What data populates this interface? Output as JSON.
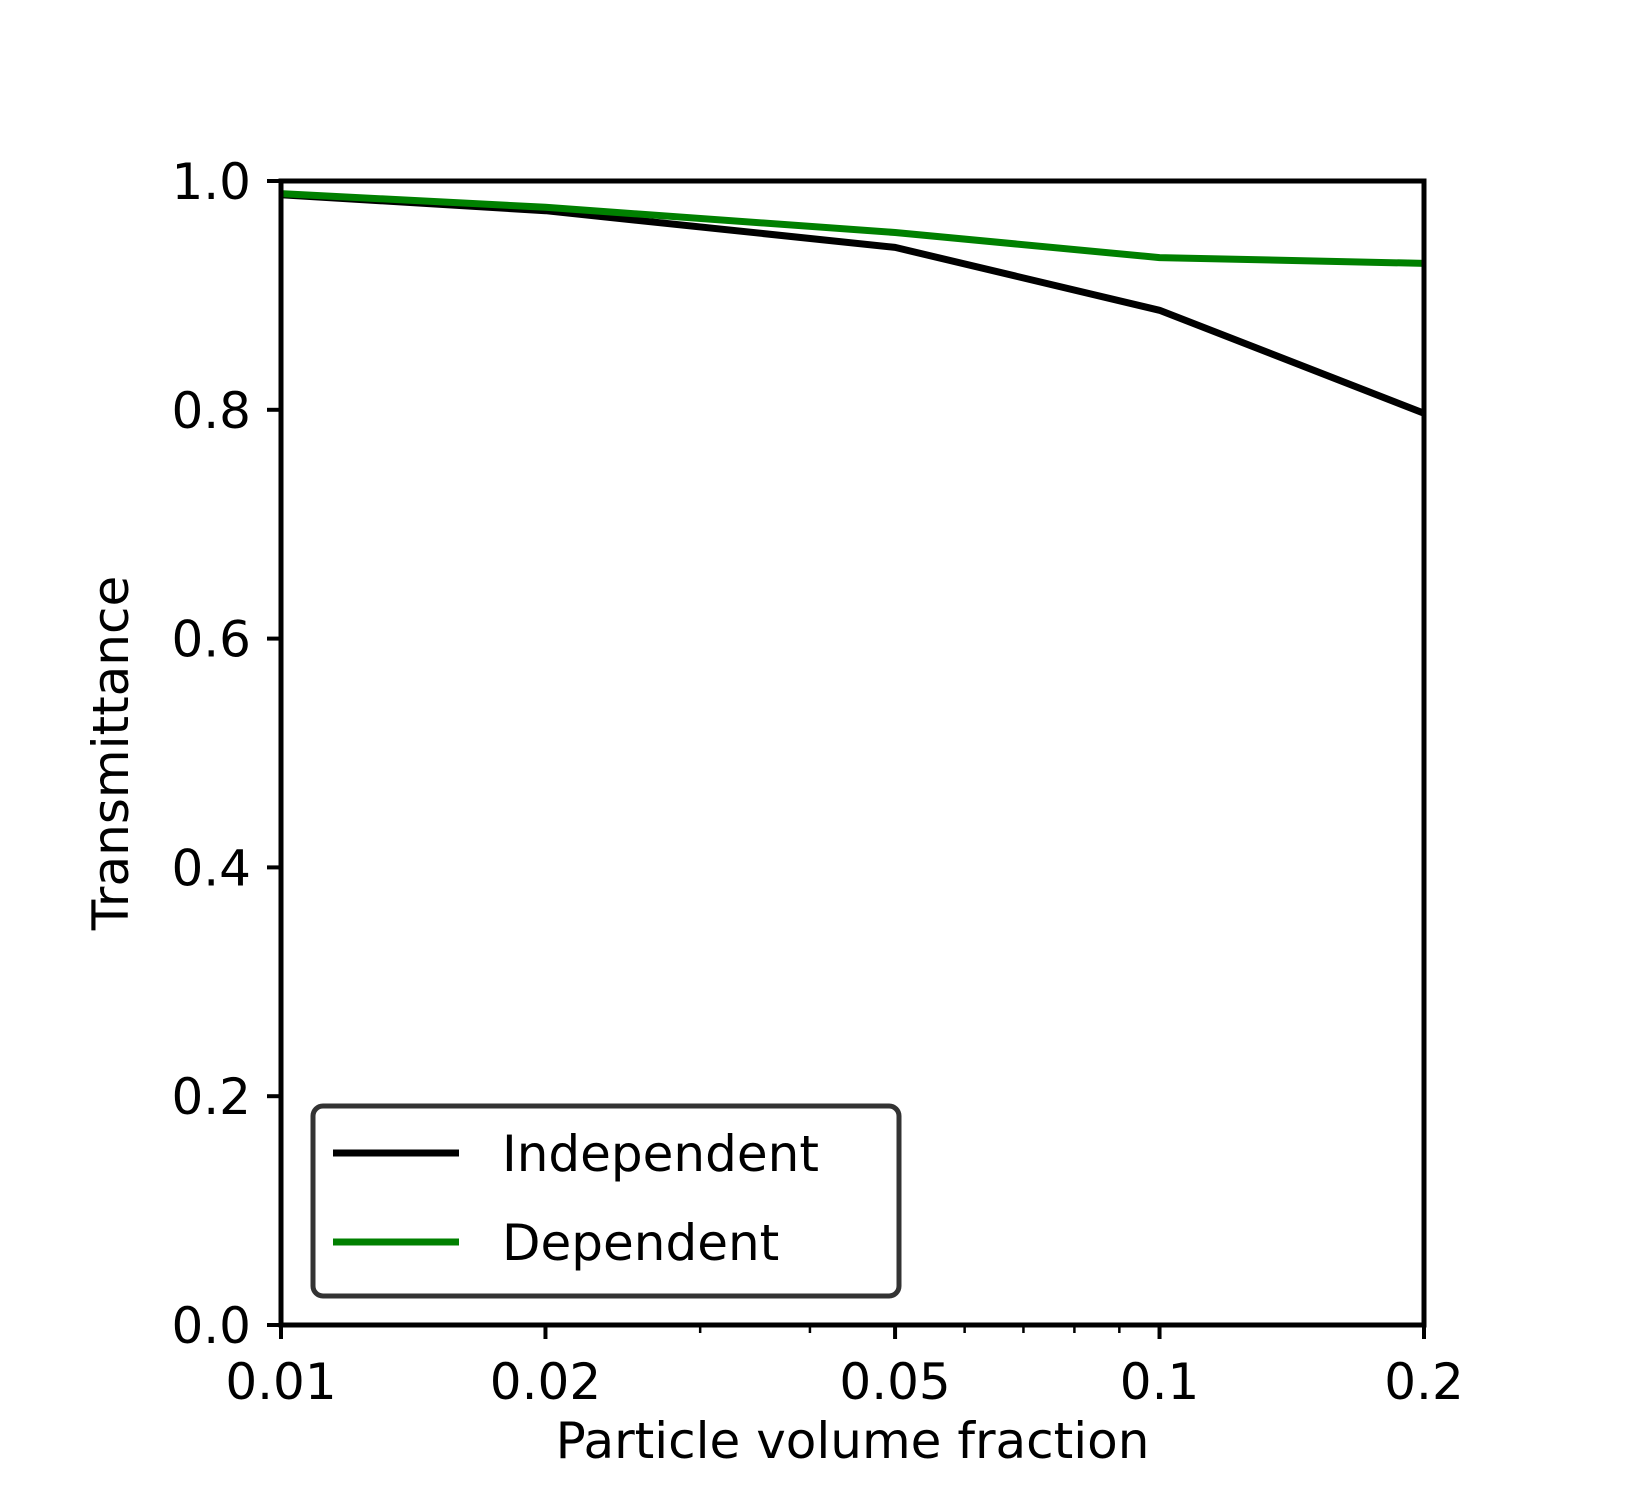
{
  "chart_data": {
    "type": "line",
    "title": "",
    "xlabel": "Particle volume fraction",
    "ylabel": "Transmittance",
    "xscale": "log",
    "xlim": [
      0.01,
      0.2
    ],
    "ylim": [
      0.0,
      1.0
    ],
    "x_ticks": [
      0.01,
      0.02,
      0.05,
      0.1,
      0.2
    ],
    "x_tick_labels": [
      "0.01",
      "0.02",
      "0.05",
      "0.1",
      "0.2"
    ],
    "y_ticks": [
      0.0,
      0.2,
      0.4,
      0.6,
      0.8,
      1.0
    ],
    "y_tick_labels": [
      "0.0",
      "0.2",
      "0.4",
      "0.6",
      "0.8",
      "1.0"
    ],
    "grid": false,
    "legend_position": "lower-left",
    "x": [
      0.01,
      0.02,
      0.05,
      0.1,
      0.2
    ],
    "series": [
      {
        "name": "Independent",
        "color": "#000000",
        "values": [
          0.988,
          0.974,
          0.942,
          0.887,
          0.797
        ]
      },
      {
        "name": "Dependent",
        "color": "#008000",
        "values": [
          0.989,
          0.977,
          0.955,
          0.933,
          0.928
        ]
      }
    ]
  }
}
